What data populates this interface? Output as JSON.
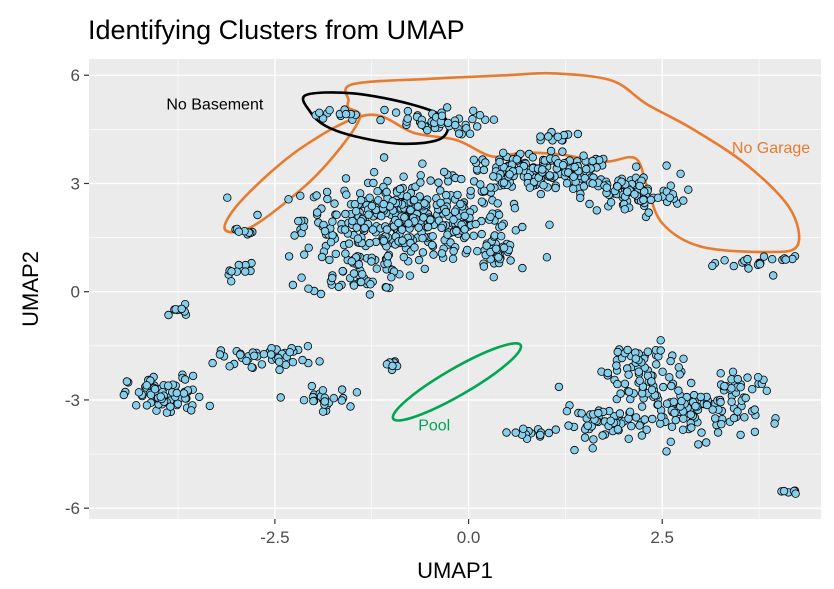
{
  "chart_data": {
    "type": "scatter",
    "title": "Identifying Clusters from UMAP",
    "xlabel": "UMAP1",
    "ylabel": "UMAP2",
    "xlim": [
      -4.9,
      4.55
    ],
    "ylim": [
      -6.3,
      6.45
    ],
    "x_ticks": [
      -2.5,
      0.0,
      2.5
    ],
    "x_tick_labels": [
      "-2.5",
      "0.0",
      "2.5"
    ],
    "y_ticks": [
      -6,
      -3,
      0,
      3,
      6
    ],
    "y_tick_labels": [
      "-6",
      "-3",
      "0",
      "3",
      "6"
    ],
    "grid": true,
    "point_fill": "#87ceeb",
    "point_stroke": "#000000",
    "panel_bg": "#ebebeb",
    "clusters": [
      {
        "cx": -0.8,
        "cy": 2.0,
        "sx": 0.95,
        "sy": 0.75,
        "n": 380
      },
      {
        "cx": 0.9,
        "cy": 3.3,
        "sx": 0.75,
        "sy": 0.35,
        "n": 180
      },
      {
        "cx": 2.1,
        "cy": 2.7,
        "sx": 0.45,
        "sy": 0.4,
        "n": 90
      },
      {
        "cx": 0.35,
        "cy": 1.1,
        "sx": 0.18,
        "sy": 0.35,
        "n": 40
      },
      {
        "cx": -1.4,
        "cy": 0.6,
        "sx": 0.5,
        "sy": 0.5,
        "n": 60
      },
      {
        "cx": -0.5,
        "cy": 4.7,
        "sx": 0.5,
        "sy": 0.25,
        "n": 45
      },
      {
        "cx": 1.1,
        "cy": 4.3,
        "sx": 0.2,
        "sy": 0.1,
        "n": 12
      },
      {
        "cx": -1.7,
        "cy": 4.9,
        "sx": 0.2,
        "sy": 0.15,
        "n": 12
      },
      {
        "cx": -2.9,
        "cy": 1.7,
        "sx": 0.08,
        "sy": 0.1,
        "n": 8
      },
      {
        "cx": -3.0,
        "cy": 0.6,
        "sx": 0.2,
        "sy": 0.2,
        "n": 10
      },
      {
        "cx": -3.9,
        "cy": -2.9,
        "sx": 0.35,
        "sy": 0.4,
        "n": 80
      },
      {
        "cx": -2.6,
        "cy": -1.8,
        "sx": 0.45,
        "sy": 0.2,
        "n": 45
      },
      {
        "cx": -1.9,
        "cy": -3.0,
        "sx": 0.25,
        "sy": 0.25,
        "n": 25
      },
      {
        "cx": -1.0,
        "cy": -2.0,
        "sx": 0.12,
        "sy": 0.1,
        "n": 8
      },
      {
        "cx": 0.85,
        "cy": -3.9,
        "sx": 0.3,
        "sy": 0.08,
        "n": 15
      },
      {
        "cx": 1.75,
        "cy": -3.7,
        "sx": 0.4,
        "sy": 0.35,
        "n": 45
      },
      {
        "cx": 2.35,
        "cy": -2.7,
        "sx": 0.45,
        "sy": 0.55,
        "n": 75
      },
      {
        "cx": 3.0,
        "cy": -3.4,
        "sx": 0.5,
        "sy": 0.5,
        "n": 85
      },
      {
        "cx": 2.2,
        "cy": -1.8,
        "sx": 0.35,
        "sy": 0.25,
        "n": 25
      },
      {
        "cx": 3.5,
        "cy": -2.6,
        "sx": 0.3,
        "sy": 0.2,
        "n": 25
      },
      {
        "cx": 3.7,
        "cy": 0.8,
        "sx": 0.3,
        "sy": 0.2,
        "n": 15
      },
      {
        "cx": 4.1,
        "cy": 0.9,
        "sx": 0.1,
        "sy": 0.05,
        "n": 6
      },
      {
        "cx": 4.15,
        "cy": -5.55,
        "sx": 0.1,
        "sy": 0.05,
        "n": 6
      },
      {
        "cx": -3.75,
        "cy": -0.55,
        "sx": 0.15,
        "sy": 0.1,
        "n": 10
      }
    ],
    "annotations": [
      {
        "label": "No Basement",
        "color": "#000000",
        "x": -2.65,
        "y": 5.05,
        "anchor": "end"
      },
      {
        "label": "No Garage",
        "color": "#e87b2e",
        "x": 3.4,
        "y": 3.85,
        "anchor": "start"
      },
      {
        "label": "Pool",
        "color": "#00a651",
        "x": -0.65,
        "y": -3.85,
        "anchor": "start"
      }
    ],
    "outlines": {
      "no_basement": {
        "color": "#000000",
        "points": [
          [
            -2.1,
            5.45
          ],
          [
            -1.5,
            5.5
          ],
          [
            -0.75,
            5.2
          ],
          [
            -0.3,
            4.8
          ],
          [
            -0.35,
            4.25
          ],
          [
            -0.85,
            4.1
          ],
          [
            -1.45,
            4.3
          ],
          [
            -1.85,
            4.6
          ],
          [
            -2.05,
            5.0
          ]
        ]
      },
      "no_garage": {
        "color": "#e87b2e",
        "points": [
          [
            -1.55,
            5.3
          ],
          [
            -1.5,
            5.75
          ],
          [
            -0.5,
            5.9
          ],
          [
            0.5,
            6.0
          ],
          [
            1.1,
            6.05
          ],
          [
            1.85,
            5.85
          ],
          [
            2.3,
            5.2
          ],
          [
            2.9,
            4.5
          ],
          [
            3.6,
            3.5
          ],
          [
            4.15,
            2.3
          ],
          [
            4.25,
            1.3
          ],
          [
            3.9,
            1.1
          ],
          [
            3.0,
            1.25
          ],
          [
            2.5,
            1.9
          ],
          [
            2.3,
            2.95
          ],
          [
            2.15,
            3.7
          ],
          [
            1.75,
            3.6
          ],
          [
            1.2,
            3.8
          ],
          [
            0.7,
            3.85
          ],
          [
            0.3,
            3.75
          ],
          [
            -0.15,
            4.2
          ],
          [
            -0.7,
            4.4
          ],
          [
            -1.3,
            4.9
          ],
          [
            -2.15,
            4.0
          ],
          [
            -2.9,
            2.6
          ],
          [
            -3.15,
            1.75
          ],
          [
            -2.8,
            1.8
          ],
          [
            -2.1,
            2.95
          ],
          [
            -1.65,
            4.0
          ],
          [
            -1.4,
            4.85
          ],
          [
            -1.55,
            5.1
          ]
        ]
      },
      "pool": {
        "color": "#00a651",
        "cx": -0.15,
        "cy": -2.5,
        "rx": 0.95,
        "ry": 0.62,
        "rotation_deg": -30
      }
    }
  }
}
